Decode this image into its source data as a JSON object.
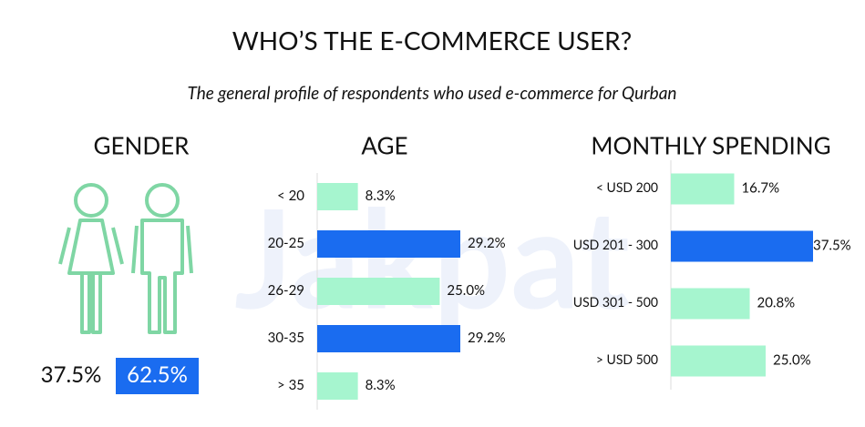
{
  "title": "WHO’S THE E-COMMERCE USER?",
  "subtitle": "The general profile of respondents who used e-commerce for Qurban",
  "watermark": "Jakpat",
  "chart_data": [
    {
      "type": "gender",
      "title": "GENDER",
      "values": [
        37.5,
        62.5
      ],
      "value_labels": [
        "37.5%",
        "62.5%"
      ],
      "colors": [
        "#ffffff",
        "#1a6cf0"
      ],
      "icon_color": "#7fd6a4"
    },
    {
      "type": "hbar",
      "title": "AGE",
      "categories": [
        "< 20",
        "20-25",
        "26-29",
        "30-35",
        "> 35"
      ],
      "values": [
        8.3,
        29.2,
        25.0,
        29.2,
        8.3
      ],
      "value_labels": [
        "8.3%",
        "29.2%",
        "25.0%",
        "29.2%",
        "8.3%"
      ],
      "colors": [
        "#a6f5cf",
        "#1a6cf0",
        "#a6f5cf",
        "#1a6cf0",
        "#a6f5cf"
      ]
    },
    {
      "type": "hbar",
      "title": "MONTHLY SPENDING",
      "categories": [
        "< USD 200",
        "USD 201 - 300",
        "USD 301 - 500",
        "> USD 500"
      ],
      "values": [
        16.7,
        37.5,
        20.8,
        25.0
      ],
      "value_labels": [
        "16.7%",
        "37.5%",
        "20.8%",
        "25.0%"
      ],
      "colors": [
        "#a6f5cf",
        "#1a6cf0",
        "#a6f5cf",
        "#a6f5cf"
      ]
    }
  ]
}
